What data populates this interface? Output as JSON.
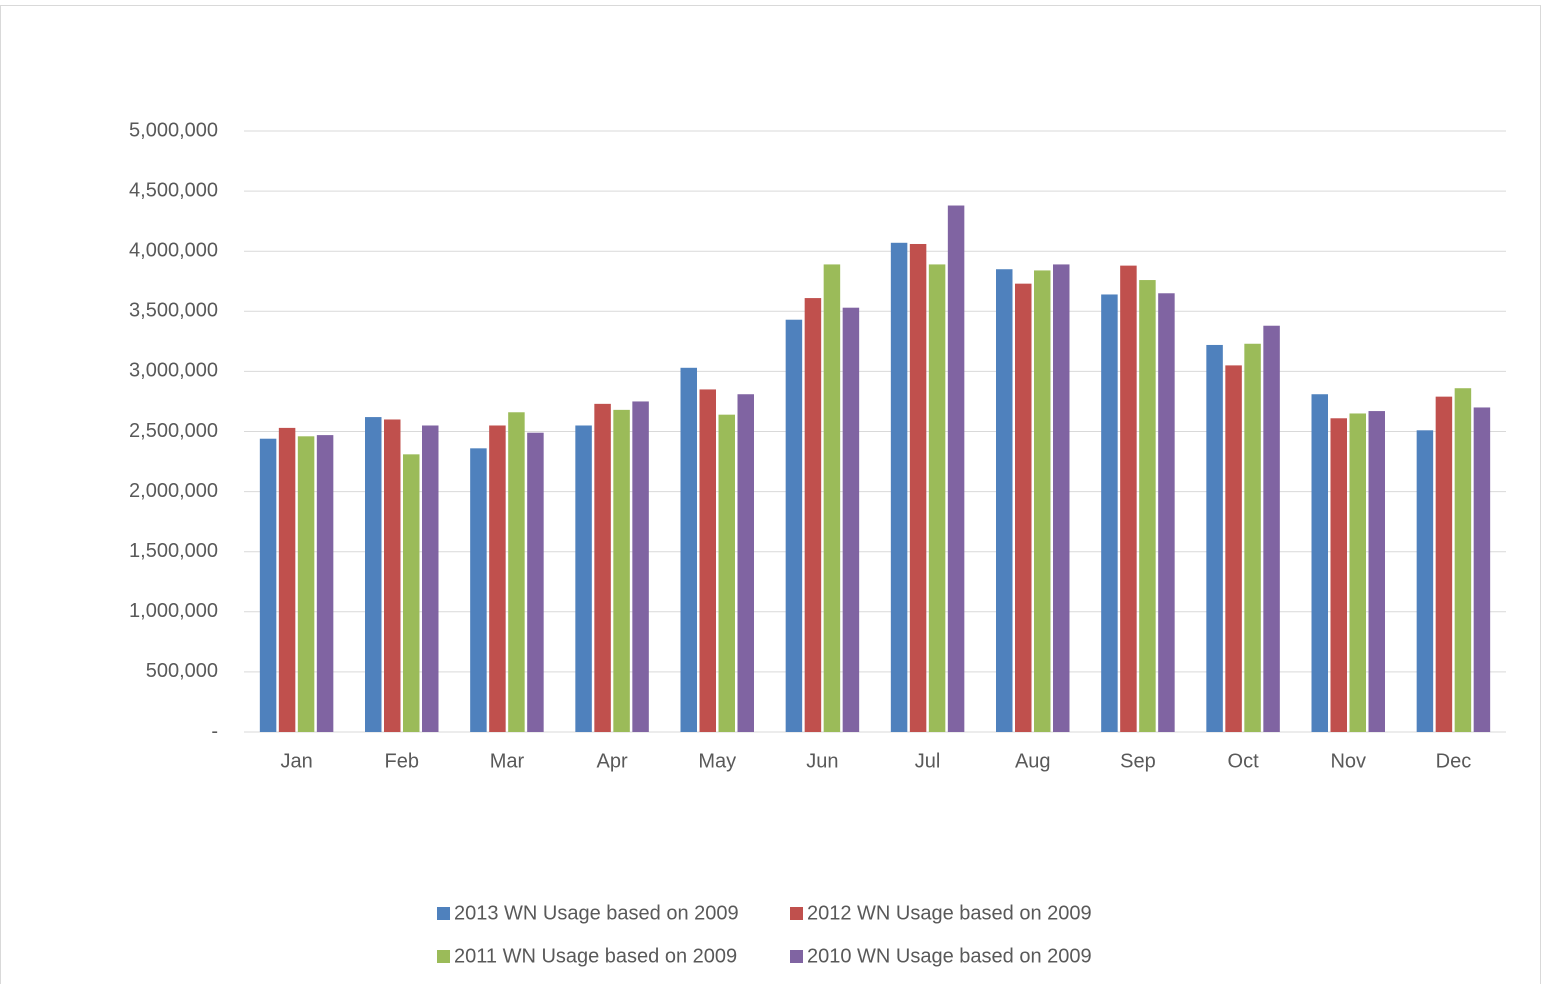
{
  "chart_data": {
    "type": "bar",
    "categories": [
      "Jan",
      "Feb",
      "Mar",
      "Apr",
      "May",
      "Jun",
      "Jul",
      "Aug",
      "Sep",
      "Oct",
      "Nov",
      "Dec"
    ],
    "series": [
      {
        "name": "2013 WN Usage based on 2009",
        "color": "#4f81bd",
        "values": [
          2440000,
          2620000,
          2360000,
          2550000,
          3030000,
          3430000,
          4070000,
          3850000,
          3640000,
          3220000,
          2810000,
          2510000
        ]
      },
      {
        "name": "2012 WN Usage based on 2009",
        "color": "#c0504d",
        "values": [
          2530000,
          2600000,
          2550000,
          2730000,
          2850000,
          3610000,
          4060000,
          3730000,
          3880000,
          3050000,
          2610000,
          2790000
        ]
      },
      {
        "name": "2011 WN Usage based on 2009",
        "color": "#9bbb59",
        "values": [
          2460000,
          2310000,
          2660000,
          2680000,
          2640000,
          3890000,
          3890000,
          3840000,
          3760000,
          3230000,
          2650000,
          2860000
        ]
      },
      {
        "name": "2010 WN Usage based on 2009",
        "color": "#8064a2",
        "values": [
          2470000,
          2550000,
          2490000,
          2750000,
          2810000,
          3530000,
          4380000,
          3890000,
          3650000,
          3380000,
          2670000,
          2700000
        ]
      }
    ],
    "ylim": [
      0,
      5000000
    ],
    "yticks": [
      {
        "value": 0,
        "label": "-"
      },
      {
        "value": 500000,
        "label": "500,000"
      },
      {
        "value": 1000000,
        "label": "1,000,000"
      },
      {
        "value": 1500000,
        "label": "1,500,000"
      },
      {
        "value": 2000000,
        "label": "2,000,000"
      },
      {
        "value": 2500000,
        "label": "2,500,000"
      },
      {
        "value": 3000000,
        "label": "3,000,000"
      },
      {
        "value": 3500000,
        "label": "3,500,000"
      },
      {
        "value": 4000000,
        "label": "4,000,000"
      },
      {
        "value": 4500000,
        "label": "4,500,000"
      },
      {
        "value": 5000000,
        "label": "5,000,000"
      }
    ],
    "grid": true,
    "legend": "bottom"
  }
}
